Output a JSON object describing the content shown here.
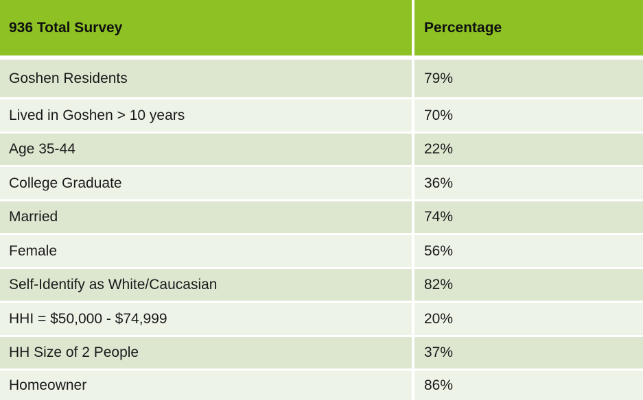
{
  "table": {
    "header": {
      "label": "936 Total Survey",
      "value": "Percentage"
    },
    "rows": [
      {
        "label": "Goshen Residents",
        "value": "79%"
      },
      {
        "label": "Lived in Goshen > 10 years",
        "value": "70%"
      },
      {
        "label": "Age 35-44",
        "value": "22%"
      },
      {
        "label": "College Graduate",
        "value": "36%"
      },
      {
        "label": "Married",
        "value": "74%"
      },
      {
        "label": "Female",
        "value": "56%"
      },
      {
        "label": "Self-Identify as White/Caucasian",
        "value": "82%"
      },
      {
        "label": "HHI = $50,000 - $74,999",
        "value": "20%"
      },
      {
        "label": "HH Size of 2 People",
        "value": "37%"
      },
      {
        "label": "Homeowner",
        "value": "86%"
      }
    ]
  },
  "colors": {
    "header_bg": "#8dc124",
    "row_odd_bg": "#dde7d0",
    "row_even_bg": "#eef3e8"
  }
}
